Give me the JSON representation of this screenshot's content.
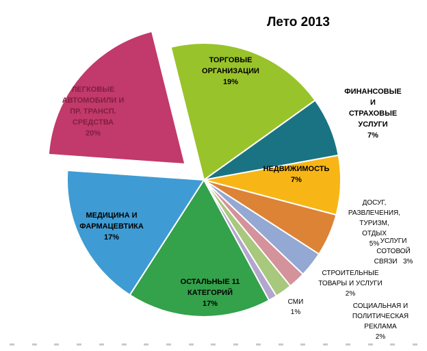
{
  "title": "Лето 2013",
  "chart_data": {
    "type": "pie",
    "title": "Лето 2013",
    "units": "%",
    "start_angle_deg": -14,
    "direction": "clockwise",
    "legend_position": "none",
    "labels_on_chart": true,
    "slices": [
      {
        "id": "trade-organizations",
        "label": "ТОРГОВЫЕ ОРГАНИЗАЦИИ",
        "value": 19,
        "color": "#99c32a",
        "exploded": false
      },
      {
        "id": "financial-insurance-services",
        "label": "ФИНАНСОВЫЕ И СТРАХОВЫЕ УСЛУГИ",
        "value": 7,
        "color": "#1a7382",
        "exploded": false
      },
      {
        "id": "real-estate",
        "label": "НЕДВИЖИМОСТЬ",
        "value": 7,
        "color": "#f7b616",
        "exploded": false
      },
      {
        "id": "leisure-entertainment-tourism",
        "label": "ДОСУГ, РАЗВЛЕЧЕНИЯ, ТУРИЗМ, ОТДЫХ",
        "value": 5,
        "color": "#dd8335",
        "exploded": false
      },
      {
        "id": "mobile-communication-services",
        "label": "УСЛУГИ СОТОВОЙ СВЯЗИ",
        "value": 3,
        "color": "#93a8d2",
        "exploded": false
      },
      {
        "id": "construction-goods-services",
        "label": "СТРОИТЕЛЬНЫЕ ТОВАРЫ И УСЛУГИ",
        "value": 2,
        "color": "#d4929b",
        "exploded": false
      },
      {
        "id": "social-political-advertising",
        "label": "СОЦИАЛЬНАЯ И ПОЛИТИЧЕСКАЯ РЕКЛАМА",
        "value": 2,
        "color": "#a8c87d",
        "exploded": false
      },
      {
        "id": "mass-media",
        "label": "СМИ",
        "value": 1,
        "color": "#b3a6ce",
        "exploded": false
      },
      {
        "id": "other-11-categories",
        "label": "ОСТАЛЬНЫЕ 11 КАТЕГОРИЙ",
        "value": 17,
        "color": "#34a14b",
        "exploded": false
      },
      {
        "id": "medicine-pharmaceutics",
        "label": "МЕДИЦИНА И ФАРМАЦЕВТИКА",
        "value": 17,
        "color": "#3f9bd3",
        "exploded": false
      },
      {
        "id": "passenger-cars-transport",
        "label": "ЛЕГКОВЫЕ АВТОМОБИЛИ И ПР. ТРАНСП. СРЕДСТВА",
        "value": 20,
        "color": "#c2396b",
        "exploded": true
      }
    ]
  },
  "callouts": {
    "trade": {
      "text": [
        "ТОРГОВЫЕ",
        "ОРГАНИЗАЦИИ",
        "19%"
      ]
    },
    "finance": {
      "text": [
        "ФИНАНСОВЫЕ И",
        "СТРАХОВЫЕ УСЛУГИ",
        "7%"
      ]
    },
    "realty": {
      "text": [
        "НЕДВИЖИМОСТЬ",
        "7%"
      ]
    },
    "leisure": {
      "text": [
        "ДОСУГ,",
        "РАЗВЛЕЧЕНИЯ,",
        "ТУРИЗМ, ОТДЫХ",
        "5%"
      ]
    },
    "mobile": {
      "text": [
        "УСЛУГИ",
        "СОТОВОЙ",
        "СВЯЗИ   3%"
      ]
    },
    "construction": {
      "text": [
        "СТРОИТЕЛЬНЫЕ",
        "ТОВАРЫ И УСЛУГИ",
        "2%"
      ]
    },
    "media": {
      "text": [
        "СМИ",
        "1%"
      ]
    },
    "social": {
      "text": [
        "СОЦИАЛЬНАЯ И",
        "ПОЛИТИЧЕСКАЯ",
        "РЕКЛАМА",
        "2%"
      ]
    },
    "others": {
      "text": [
        "ОСТАЛЬНЫЕ 11",
        "КАТЕГОРИЙ",
        "17%"
      ]
    },
    "medicine": {
      "text": [
        "МЕДИЦИНА И",
        "ФАРМАЦЕВТИКА",
        "17%"
      ]
    },
    "cars": {
      "text": [
        "ЛЕГКОВЫЕ",
        "АВТОМОБИЛИ И",
        "ПР. ТРАНСП.",
        "СРЕДСТВА",
        "20%"
      ]
    }
  },
  "colors": {
    "background": "#ffffff",
    "title_text": "#000000",
    "callout_text": "#000000",
    "cars_callout_text": "#7f1f3f",
    "slice_border": "#ffffff"
  }
}
